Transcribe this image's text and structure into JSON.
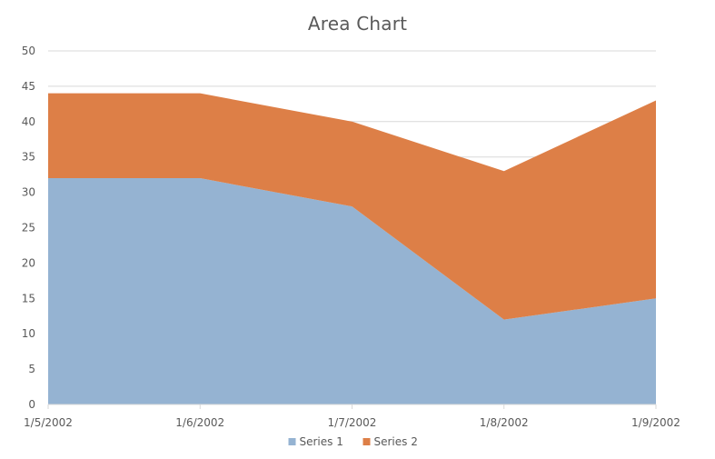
{
  "chart_data": {
    "type": "area",
    "stacked": true,
    "title": "Area Chart",
    "xlabel": "",
    "ylabel": "",
    "categories": [
      "1/5/2002",
      "1/6/2002",
      "1/7/2002",
      "1/8/2002",
      "1/9/2002"
    ],
    "series": [
      {
        "name": "Series 1",
        "values": [
          32,
          32,
          28,
          12,
          15
        ],
        "color": "#95b3d2"
      },
      {
        "name": "Series 2",
        "values": [
          12,
          12,
          12,
          21,
          28
        ],
        "color": "#dd7f47"
      }
    ],
    "ylim": [
      0,
      50
    ],
    "yticks": [
      0,
      5,
      10,
      15,
      20,
      25,
      30,
      35,
      40,
      45,
      50
    ],
    "grid": true,
    "gridColor": "#d9d9d9",
    "legend": "bottom"
  }
}
